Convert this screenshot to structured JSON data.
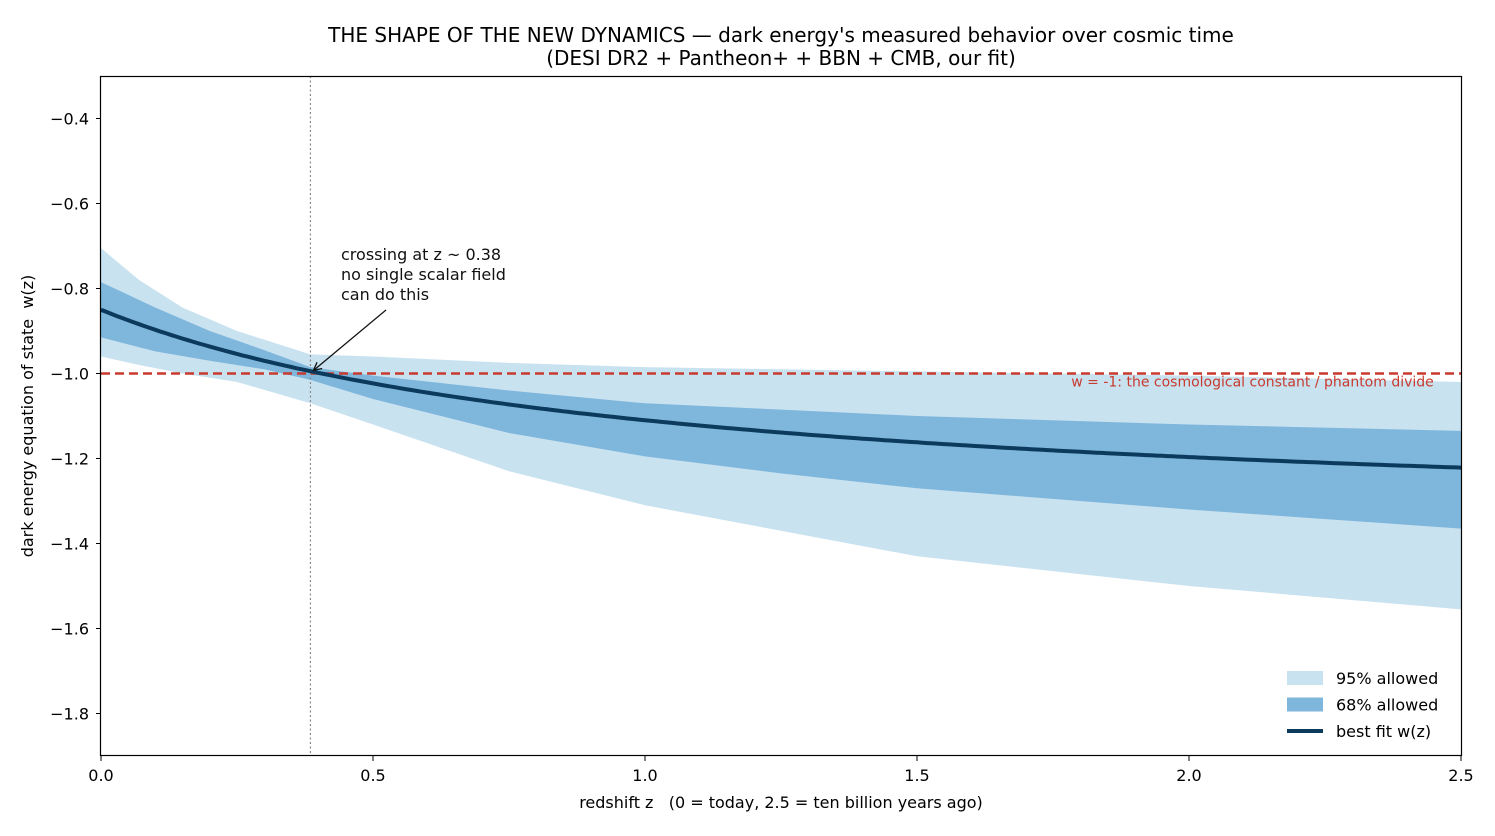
{
  "chart_data": {
    "type": "line",
    "title": "THE SHAPE OF THE NEW DYNAMICS — dark energy's measured behavior over cosmic time",
    "subtitle": "(DESI DR2 + Pantheon+ + BBN + CMB, our fit)",
    "xlabel": "redshift z   (0 = today, 2.5 = ten billion years ago)",
    "ylabel": "dark energy equation of state  w(z)",
    "xlim": [
      0,
      2.5
    ],
    "ylim": [
      -1.9,
      -0.3
    ],
    "xticks": [
      0.0,
      0.5,
      1.0,
      1.5,
      2.0,
      2.5
    ],
    "xtick_labels": [
      "0.0",
      "0.5",
      "1.0",
      "1.5",
      "2.0",
      "2.5"
    ],
    "yticks": [
      -0.4,
      -0.6,
      -0.8,
      -1.0,
      -1.2,
      -1.4,
      -1.6,
      -1.8
    ],
    "ytick_labels": [
      "−0.4",
      "−0.6",
      "−0.8",
      "−1.0",
      "−1.2",
      "−1.4",
      "−1.6",
      "−1.8"
    ],
    "grid": false,
    "legend_position": "bottom-right",
    "w0": -0.85,
    "wa": -0.52,
    "series": [
      {
        "name": "95% allowed",
        "kind": "band",
        "color": "#c9e2f0",
        "x": [
          0.0,
          0.07,
          0.15,
          0.25,
          0.385,
          0.5,
          0.75,
          1.0,
          1.5,
          2.0,
          2.5
        ],
        "lower": [
          -0.96,
          -0.98,
          -1.0,
          -1.02,
          -1.07,
          -1.12,
          -1.23,
          -1.31,
          -1.43,
          -1.5,
          -1.555
        ],
        "upper": [
          -0.705,
          -0.78,
          -0.845,
          -0.9,
          -0.955,
          -0.96,
          -0.975,
          -0.985,
          -0.995,
          -1.005,
          -1.02
        ]
      },
      {
        "name": "68% allowed",
        "kind": "band",
        "color": "#7fb6dc",
        "x": [
          0.0,
          0.1,
          0.2,
          0.3,
          0.385,
          0.5,
          0.75,
          1.0,
          1.25,
          1.5,
          2.0,
          2.5
        ],
        "lower": [
          -0.915,
          -0.948,
          -0.97,
          -0.99,
          -1.015,
          -1.06,
          -1.14,
          -1.195,
          -1.235,
          -1.27,
          -1.32,
          -1.365
        ],
        "upper": [
          -0.785,
          -0.845,
          -0.9,
          -0.945,
          -0.985,
          -1.005,
          -1.04,
          -1.07,
          -1.085,
          -1.1,
          -1.12,
          -1.135
        ]
      },
      {
        "name": "best fit w(z)",
        "kind": "line",
        "color": "#0b3a5c"
      }
    ],
    "reference_line": {
      "y": -1.0,
      "color": "#c83a2e",
      "label": "w = -1: the cosmological constant / phantom divide"
    },
    "crossing": {
      "x": 0.385,
      "y": -1.0,
      "label_lines": [
        "crossing at z ~ 0.38",
        "no single scalar field",
        "can do this"
      ]
    }
  }
}
